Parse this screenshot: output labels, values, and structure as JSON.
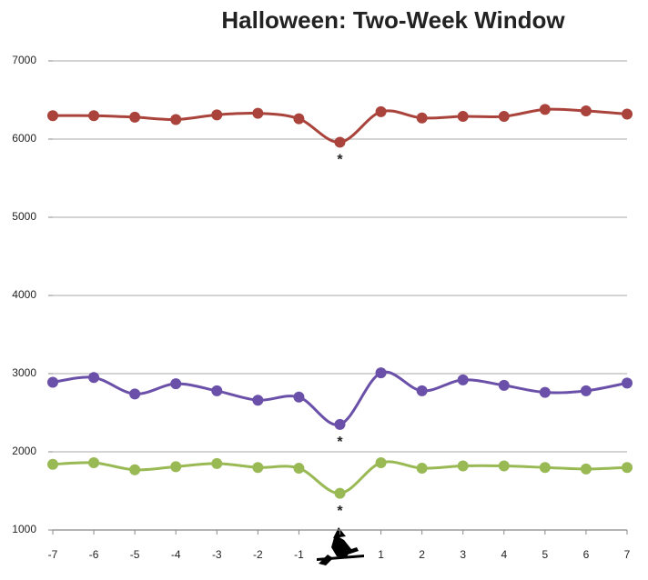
{
  "chart_data": {
    "type": "line",
    "title": "Halloween: Two-Week Window",
    "categories": [
      "-7",
      "-6",
      "-5",
      "-4",
      "-3",
      "-2",
      "-1",
      null,
      "1",
      "2",
      "3",
      "4",
      "5",
      "6",
      "7"
    ],
    "series": [
      {
        "color": "#a9433b",
        "values": [
          6300,
          6300,
          6280,
          6250,
          6310,
          6330,
          6260,
          5960,
          6350,
          6270,
          6290,
          6290,
          6380,
          6360,
          6320
        ]
      },
      {
        "color": "#6a50a8",
        "values": [
          2890,
          2950,
          2740,
          2870,
          2780,
          2660,
          2700,
          2350,
          3010,
          2780,
          2920,
          2850,
          2760,
          2780,
          2880
        ]
      },
      {
        "color": "#99b955",
        "values": [
          1840,
          1860,
          1770,
          1810,
          1850,
          1800,
          1790,
          1470,
          1860,
          1790,
          1820,
          1820,
          1800,
          1780,
          1800
        ]
      }
    ],
    "annotations": [
      "*",
      "*",
      "*"
    ],
    "ylim": [
      1000,
      7000
    ],
    "yticks": [
      1000,
      2000,
      3000,
      4000,
      5000,
      6000,
      7000
    ],
    "grid": true
  }
}
